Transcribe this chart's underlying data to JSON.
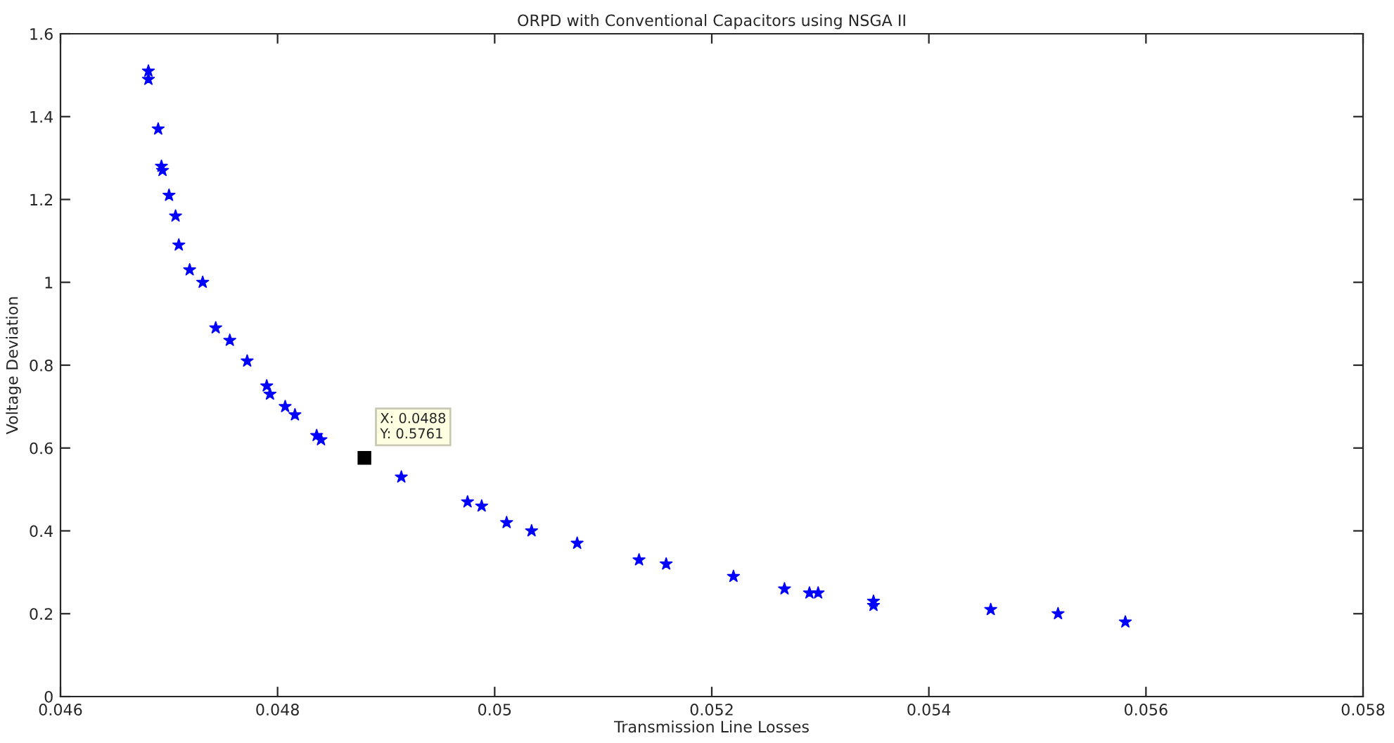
{
  "chart_data": {
    "type": "scatter",
    "title": "ORPD with Conventional Capacitors using NSGA II",
    "xlabel": "Transmission Line Losses",
    "ylabel": "Voltage Deviation",
    "x": [
      0.04681,
      0.04681,
      0.0469,
      0.04693,
      0.04694,
      0.047,
      0.04706,
      0.04709,
      0.04719,
      0.04731,
      0.04743,
      0.04756,
      0.04772,
      0.0479,
      0.04793,
      0.04807,
      0.04816,
      0.04836,
      0.0484,
      0.04914,
      0.04975,
      0.04988,
      0.05011,
      0.05034,
      0.05076,
      0.05133,
      0.05158,
      0.0522,
      0.05267,
      0.0529,
      0.05298,
      0.05349,
      0.05349,
      0.05457,
      0.05519,
      0.05581
    ],
    "series": [
      {
        "color": "#0000ff",
        "values": [
          1.51,
          1.49,
          1.37,
          1.28,
          1.27,
          1.21,
          1.16,
          1.09,
          1.03,
          1.0,
          0.89,
          0.86,
          0.81,
          0.75,
          0.73,
          0.7,
          0.68,
          0.63,
          0.62,
          0.53,
          0.47,
          0.46,
          0.42,
          0.4,
          0.37,
          0.33,
          0.32,
          0.29,
          0.26,
          0.25,
          0.25,
          0.23,
          0.22,
          0.21,
          0.2,
          0.18
        ]
      }
    ],
    "xlim": [
      0.046,
      0.058
    ],
    "xticks": [
      0.046,
      0.048,
      {
        "value": 0.05,
        "label": "0.05"
      },
      0.052,
      0.054,
      0.056,
      0.058
    ],
    "ylim": [
      0,
      1.6
    ],
    "yticks": [
      0,
      0.2,
      0.4,
      0.6,
      0.8,
      1,
      1.2,
      1.4,
      1.6
    ],
    "marker": "star",
    "grid": false,
    "legend": false,
    "annotations": [
      {
        "text": "X: 0.0488\nY: 0.5761",
        "x": 0.0488,
        "y": 0.5761
      }
    ]
  }
}
